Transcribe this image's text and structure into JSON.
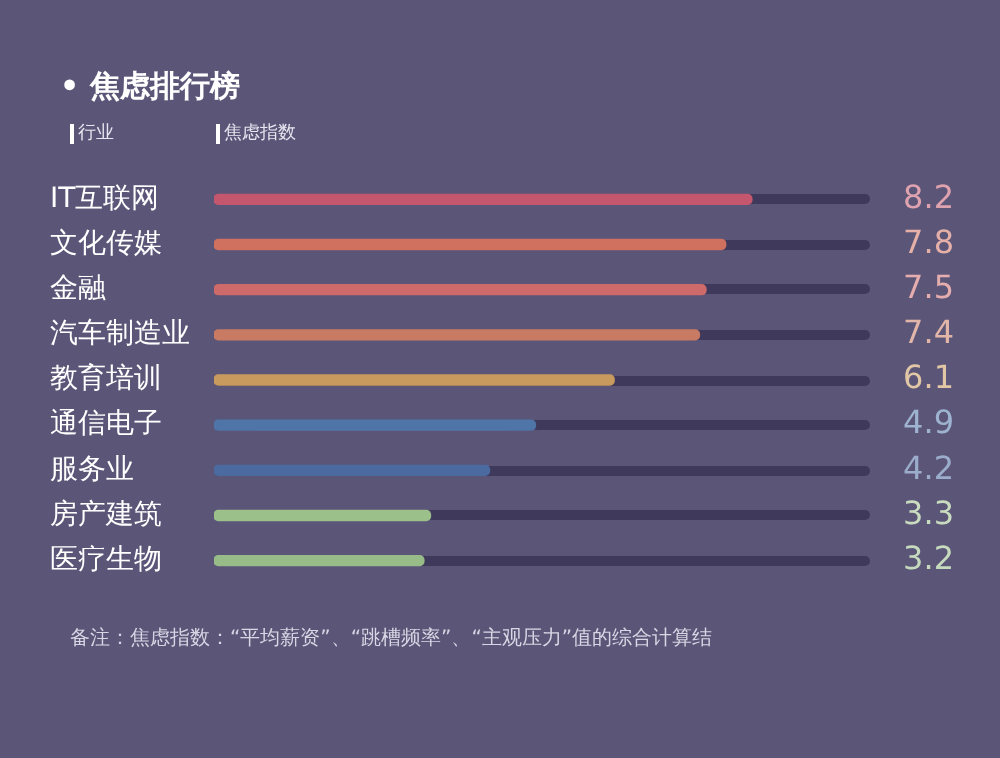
{
  "chart_data": {
    "type": "bar",
    "orientation": "horizontal",
    "title": "• 焦虑排行榜",
    "xlabel": "焦虑指数",
    "ylabel": "行业",
    "categories": [
      "IT互联网",
      "文化传媒",
      "金融",
      "汽车制造业",
      "教育培训",
      "通信电子",
      "服务业",
      "房产建筑",
      "医疗生物"
    ],
    "values": [
      8.2,
      7.8,
      7.5,
      7.4,
      6.1,
      4.9,
      4.2,
      3.3,
      3.2
    ],
    "colors": [
      "#c4566e",
      "#d0705f",
      "#cf6a6a",
      "#c97a62",
      "#c99a5e",
      "#4f74a8",
      "#4a6aa0",
      "#9cc08a",
      "#98bc88"
    ],
    "data_labels": true,
    "legend": false,
    "annotations": [
      "备注：焦虑指数：“平均薪资”、“跳槽频率”、“主观压力”值的综合计算结"
    ]
  }
}
